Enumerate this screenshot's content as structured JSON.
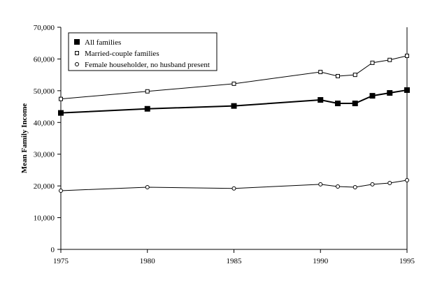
{
  "chart_data": {
    "type": "line",
    "title": "",
    "xlabel": "",
    "ylabel": "Mean Family Income",
    "xlim": [
      1975,
      1995
    ],
    "ylim": [
      0,
      70000
    ],
    "x_ticks": [
      "1975",
      "1980",
      "1985",
      "1990",
      "1995"
    ],
    "y_ticks": [
      "0",
      "10,000",
      "20,000",
      "30,000",
      "40,000",
      "50,000",
      "60,000",
      "70,000"
    ],
    "grid": false,
    "legend_placement": "top-left",
    "x": [
      1975,
      1980,
      1985,
      1990,
      1991,
      1992,
      1993,
      1994,
      1995
    ],
    "series": [
      {
        "name": "All families",
        "marker": "filled-square",
        "color": "#000000",
        "values": [
          43000,
          44300,
          45200,
          47100,
          46000,
          46000,
          48400,
          49300,
          50200
        ]
      },
      {
        "name": "Married-couple families",
        "marker": "open-square",
        "color": "#000000",
        "values": [
          47400,
          49800,
          52200,
          55900,
          54600,
          55000,
          58800,
          59700,
          61000
        ]
      },
      {
        "name": "Female householder, no husband present",
        "marker": "open-circle",
        "color": "#000000",
        "values": [
          18500,
          19600,
          19200,
          20500,
          19800,
          19600,
          20500,
          20900,
          21800
        ]
      }
    ]
  }
}
